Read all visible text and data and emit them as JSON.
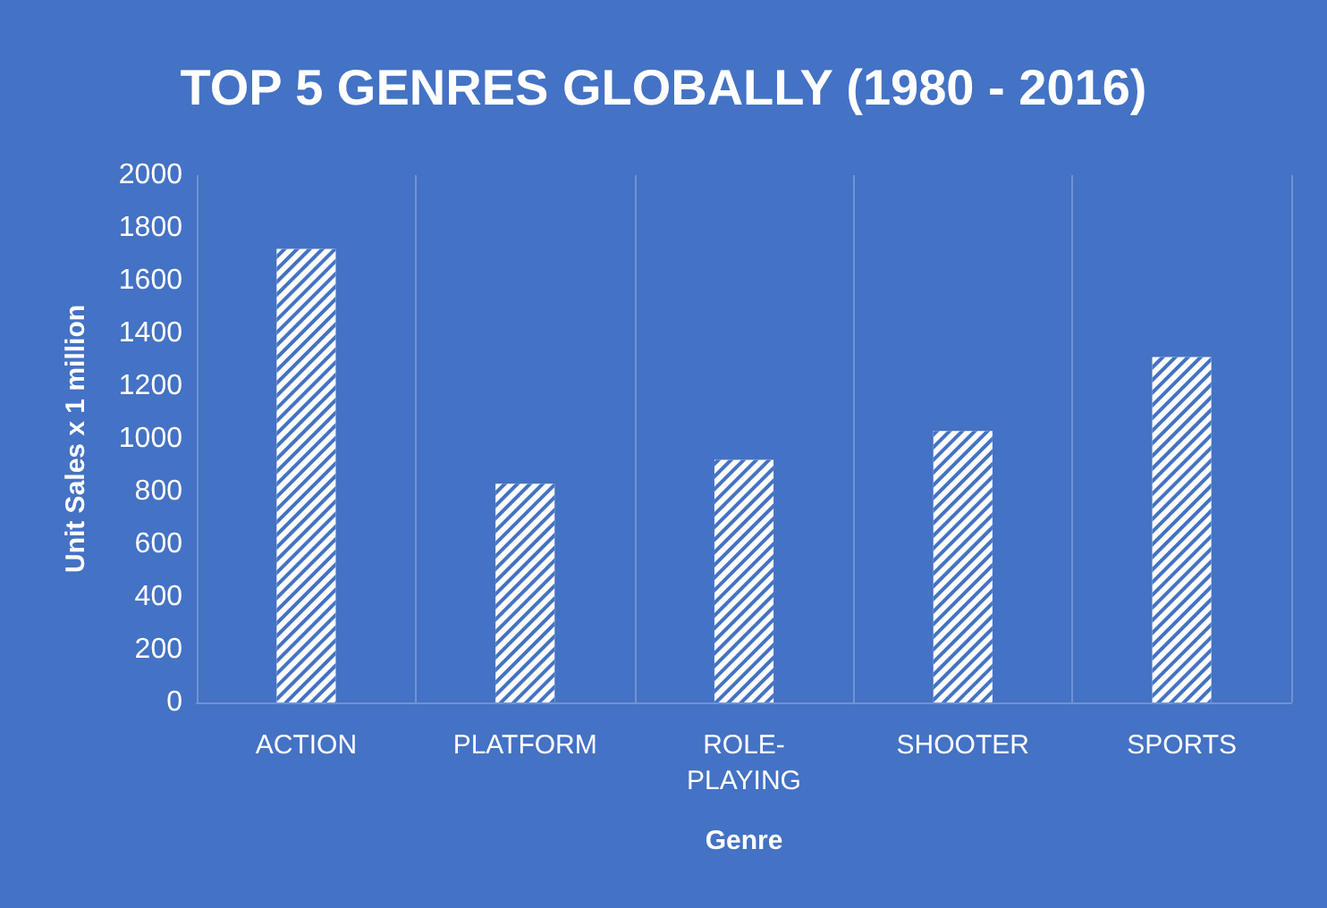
{
  "chart_data": {
    "type": "bar",
    "title": "TOP 5 GENRES GLOBALLY (1980 - 2016)",
    "xlabel": "Genre",
    "ylabel": "Unit Sales x 1 million",
    "categories": [
      "ACTION",
      "PLATFORM",
      "ROLE-PLAYING",
      "SHOOTER",
      "SPORTS"
    ],
    "values": [
      1720,
      830,
      920,
      1030,
      1310
    ],
    "color": "#ffffff",
    "ylim": [
      0,
      2000
    ],
    "yticks": [
      0,
      200,
      400,
      600,
      800,
      1000,
      1200,
      1400,
      1600,
      1800,
      2000
    ],
    "grid": "x"
  }
}
